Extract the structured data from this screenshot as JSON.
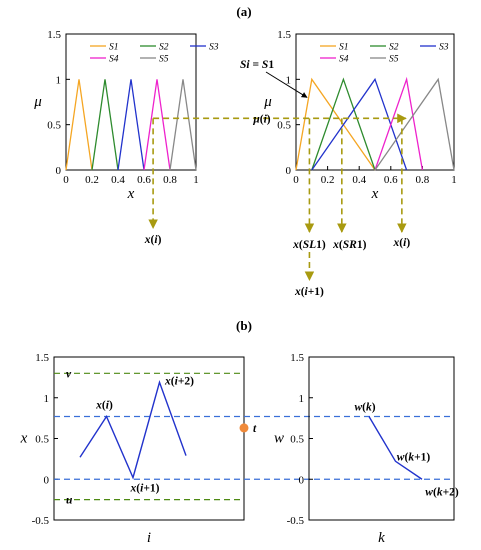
{
  "panel_labels": {
    "a": "(a)",
    "b": "(b)"
  },
  "colors": {
    "S1": "#f5a623",
    "S2": "#2e8b2e",
    "S3": "#2233cc",
    "S4": "#ee22cc",
    "S5": "#888888",
    "dashed_olive": "#a89a10",
    "hline_green": "#4e8a14",
    "hline_blue": "#3a6fd8",
    "w_line": "#2233cc",
    "t_dot": "#f08a3a"
  },
  "chart_data": [
    {
      "id": "a-left",
      "type": "line",
      "xlabel": "x",
      "ylabel": "μ",
      "xlim": [
        0,
        1
      ],
      "ylim": [
        0,
        1.5
      ],
      "xticks": [
        "0",
        "0.2",
        "0.4",
        "0.6",
        "0.8",
        "1"
      ],
      "yticks": [
        "0",
        "0.5",
        "1",
        "1.5"
      ],
      "legend_position": "top",
      "series": [
        {
          "name": "S1",
          "x": [
            0,
            0.1,
            0.2
          ],
          "y": [
            0,
            1,
            0
          ]
        },
        {
          "name": "S2",
          "x": [
            0.2,
            0.3,
            0.4
          ],
          "y": [
            0,
            1,
            0
          ]
        },
        {
          "name": "S3",
          "x": [
            0.4,
            0.5,
            0.6
          ],
          "y": [
            0,
            1,
            0
          ]
        },
        {
          "name": "S4",
          "x": [
            0.6,
            0.7,
            0.8
          ],
          "y": [
            0,
            1,
            0
          ]
        },
        {
          "name": "S5",
          "x": [
            0.8,
            0.9,
            1.0
          ],
          "y": [
            0,
            1,
            0
          ]
        }
      ],
      "marker": {
        "x": 0.67,
        "mu": 0.57,
        "label": "x(i)"
      }
    },
    {
      "id": "a-right",
      "type": "line",
      "xlabel": "x",
      "ylabel": "μ",
      "xlim": [
        0,
        1
      ],
      "ylim": [
        0,
        1.5
      ],
      "xticks": [
        "0",
        "0.2",
        "0.4",
        "0.6",
        "0.8",
        "1"
      ],
      "yticks": [
        "0",
        "0.5",
        "1",
        "1.5"
      ],
      "legend_position": "top",
      "series": [
        {
          "name": "S1",
          "x": [
            0,
            0.1,
            0.5
          ],
          "y": [
            0,
            1,
            0
          ]
        },
        {
          "name": "S2",
          "x": [
            0.1,
            0.3,
            0.5
          ],
          "y": [
            0,
            1,
            0
          ]
        },
        {
          "name": "S3",
          "x": [
            0.1,
            0.5,
            0.7
          ],
          "y": [
            0,
            1,
            0
          ]
        },
        {
          "name": "S4",
          "x": [
            0.5,
            0.7,
            0.8
          ],
          "y": [
            0,
            1,
            0
          ]
        },
        {
          "name": "S5",
          "x": [
            0.5,
            0.9,
            1.0
          ],
          "y": [
            0,
            1,
            0
          ]
        }
      ],
      "mu_level": 0.57,
      "annotations": {
        "si": "Si = S1",
        "mu": "μ(i)",
        "xsl": "x(SL1)",
        "xsr": "x(SR1)",
        "xi": "x(i)",
        "xi1": "x(i+1)"
      },
      "marks": {
        "xsl": 0.085,
        "xsr": 0.29,
        "xi": 0.67
      }
    },
    {
      "id": "b-left",
      "type": "line",
      "xlabel": "i",
      "ylabel": "x",
      "ylim": [
        -0.5,
        1.5
      ],
      "yticks": [
        "-0.5",
        "0",
        "0.5",
        "1",
        "1.5"
      ],
      "series": [
        {
          "name": "",
          "x": [
            0,
            1,
            2,
            3,
            4
          ],
          "y": [
            0.27,
            0.77,
            0.02,
            1.19,
            0.29
          ]
        }
      ],
      "hlines": [
        {
          "y": 1.3,
          "label": "v",
          "style": "green-dashed"
        },
        {
          "y": -0.25,
          "label": "u",
          "style": "green-dashed"
        },
        {
          "y": 0.77,
          "label": "",
          "style": "blue-dashed"
        },
        {
          "y": 0.0,
          "label": "",
          "style": "blue-dashed"
        }
      ],
      "point_labels": [
        "x(i)",
        "x(i+1)",
        "x(i+2)"
      ],
      "t_point": {
        "y": 0.63,
        "label": "t"
      }
    },
    {
      "id": "b-right",
      "type": "line",
      "xlabel": "k",
      "ylabel": "w",
      "ylim": [
        -0.5,
        1.5
      ],
      "yticks": [
        "-0.5",
        "0",
        "0.5",
        "1",
        "1.5"
      ],
      "series": [
        {
          "name": "",
          "x": [
            0,
            1,
            2
          ],
          "y": [
            0.77,
            0.22,
            0.0
          ]
        }
      ],
      "point_labels": [
        "w(k)",
        "w(k+1)",
        "w(k+2)"
      ]
    }
  ]
}
